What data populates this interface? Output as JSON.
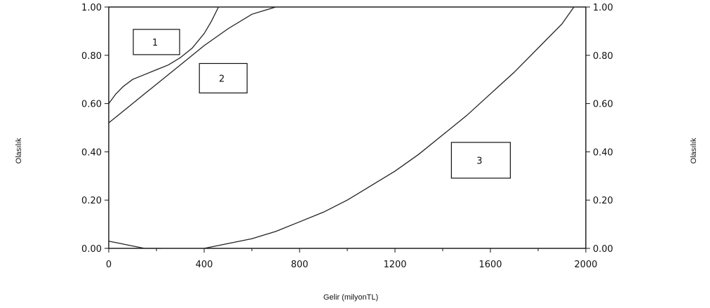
{
  "chart_data": {
    "type": "line",
    "title": "",
    "xlabel": "Gelir (milyonTL)",
    "ylabel": "Olasılık",
    "ylabel_right": "Olasılık",
    "xlim": [
      0,
      2000
    ],
    "ylim": [
      0,
      1
    ],
    "x_ticks": [
      "0",
      "400",
      "800",
      "1200",
      "1600",
      "2000"
    ],
    "y_ticks": [
      "0.00",
      "0.20",
      "0.40",
      "0.60",
      "0.80",
      "1.00"
    ],
    "grid": false,
    "series": [
      {
        "label_number": "1",
        "points": [
          [
            0,
            0.6
          ],
          [
            30,
            0.64
          ],
          [
            60,
            0.67
          ],
          [
            100,
            0.7
          ],
          [
            150,
            0.72
          ],
          [
            200,
            0.74
          ],
          [
            250,
            0.76
          ],
          [
            300,
            0.79
          ],
          [
            350,
            0.83
          ],
          [
            400,
            0.89
          ],
          [
            430,
            0.94
          ],
          [
            460,
            1.0
          ]
        ]
      },
      {
        "label_number": "2",
        "points": [
          [
            0,
            0.52
          ],
          [
            50,
            0.56
          ],
          [
            100,
            0.6
          ],
          [
            150,
            0.64
          ],
          [
            200,
            0.68
          ],
          [
            300,
            0.76
          ],
          [
            400,
            0.84
          ],
          [
            500,
            0.91
          ],
          [
            600,
            0.97
          ],
          [
            700,
            1.0
          ]
        ]
      },
      {
        "label_number": "3",
        "points": [
          [
            400,
            0.0
          ],
          [
            500,
            0.02
          ],
          [
            600,
            0.04
          ],
          [
            700,
            0.07
          ],
          [
            800,
            0.11
          ],
          [
            900,
            0.15
          ],
          [
            1000,
            0.2
          ],
          [
            1100,
            0.26
          ],
          [
            1200,
            0.32
          ],
          [
            1300,
            0.39
          ],
          [
            1400,
            0.47
          ],
          [
            1500,
            0.55
          ],
          [
            1600,
            0.64
          ],
          [
            1700,
            0.73
          ],
          [
            1800,
            0.83
          ],
          [
            1900,
            0.93
          ],
          [
            1950,
            1.0
          ]
        ]
      },
      {
        "label_number": "",
        "points": [
          [
            0,
            0.03
          ],
          [
            50,
            0.02
          ],
          [
            100,
            0.01
          ],
          [
            150,
            0.0
          ],
          [
            220,
            0.0
          ]
        ]
      }
    ],
    "region_labels": [
      {
        "text": "1",
        "x": 200,
        "y": 0.855
      },
      {
        "text": "2",
        "x": 480,
        "y": 0.705
      },
      {
        "text": "3",
        "x": 1560,
        "y": 0.365
      }
    ]
  }
}
